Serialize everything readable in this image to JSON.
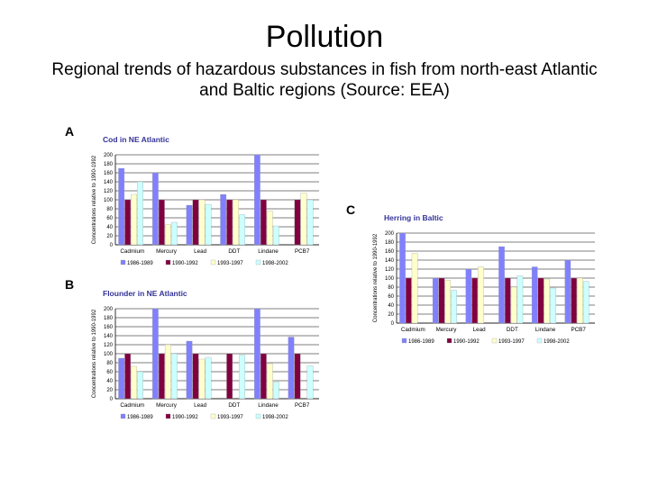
{
  "slide": {
    "title": "Pollution",
    "subtitle": "Regional trends of hazardous substances in fish from north-east Atlantic and Baltic regions (Source: EEA)"
  },
  "colors": {
    "series": [
      "#8080ff",
      "#800040",
      "#ffffcc",
      "#ccffff"
    ],
    "title_text": "#333399",
    "grid": "#000000"
  },
  "chart_data": [
    {
      "panel": "A",
      "type": "bar",
      "title": "Cod in NE Atlantic",
      "ylabel": "Concentrations relative to 1990-1992",
      "ylim": [
        0,
        200
      ],
      "yticks": [
        0,
        20,
        40,
        60,
        80,
        100,
        120,
        140,
        160,
        180,
        200
      ],
      "grid": true,
      "legend": "bottom",
      "categories": [
        "Cadmium",
        "Mercury",
        "Lead",
        "DDT",
        "Lindane",
        "PCB7"
      ],
      "series": [
        {
          "name": "1986-1989",
          "values": [
            170,
            160,
            88,
            112,
            200,
            null
          ]
        },
        {
          "name": "1990-1992",
          "values": [
            100,
            100,
            100,
            100,
            100,
            100
          ]
        },
        {
          "name": "1993-1997",
          "values": [
            112,
            45,
            100,
            100,
            75,
            115
          ]
        },
        {
          "name": "1998-2002",
          "values": [
            140,
            50,
            90,
            67,
            42,
            100
          ]
        }
      ]
    },
    {
      "panel": "B",
      "type": "bar",
      "title": "Flounder in NE Atlantic",
      "ylabel": "Concentrations relative to 1990-1992",
      "ylim": [
        0,
        200
      ],
      "yticks": [
        0,
        20,
        40,
        60,
        80,
        100,
        120,
        140,
        160,
        180,
        200
      ],
      "grid": true,
      "legend": "bottom",
      "categories": [
        "Cadmium",
        "Mercury",
        "Lead",
        "DDT",
        "Lindane",
        "PCB7"
      ],
      "series": [
        {
          "name": "1986-1989",
          "values": [
            90,
            200,
            128,
            null,
            200,
            137
          ]
        },
        {
          "name": "1990-1992",
          "values": [
            100,
            100,
            100,
            100,
            100,
            100
          ]
        },
        {
          "name": "1993-1997",
          "values": [
            72,
            120,
            88,
            null,
            78,
            null
          ]
        },
        {
          "name": "1998-2002",
          "values": [
            60,
            100,
            92,
            97,
            37,
            73
          ]
        }
      ]
    },
    {
      "panel": "C",
      "type": "bar",
      "title": "Herring in Baltic",
      "ylabel": "Concentrations relative to 1990-1992",
      "ylim": [
        0,
        200
      ],
      "yticks": [
        0,
        20,
        40,
        60,
        80,
        100,
        120,
        140,
        160,
        180,
        200
      ],
      "grid": true,
      "legend": "bottom",
      "categories": [
        "Cadmium",
        "Mercury",
        "Lead",
        "DDT",
        "Lindane",
        "PCB7"
      ],
      "series": [
        {
          "name": "1986-1989",
          "values": [
            200,
            100,
            120,
            170,
            125,
            140
          ]
        },
        {
          "name": "1990-1992",
          "values": [
            100,
            100,
            100,
            100,
            100,
            100
          ]
        },
        {
          "name": "1993-1997",
          "values": [
            155,
            95,
            125,
            80,
            98,
            100
          ]
        },
        {
          "name": "1998-2002",
          "values": [
            null,
            73,
            null,
            105,
            78,
            93
          ]
        }
      ]
    }
  ]
}
